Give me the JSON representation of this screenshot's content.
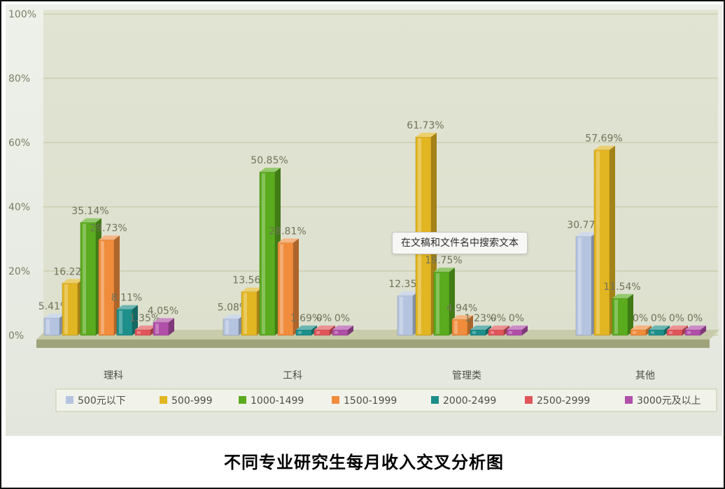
{
  "caption": "不同专业研究生每月收入交叉分析图",
  "tooltip": "在文稿和文件名中搜索文本",
  "chart_data": {
    "type": "bar",
    "title": "",
    "xlabel": "",
    "ylabel": "",
    "ylim": [
      0,
      100
    ],
    "yticks": [
      "0%",
      "20%",
      "40%",
      "60%",
      "80%",
      "100%"
    ],
    "categories": [
      "理科",
      "工科",
      "管理类",
      "其他"
    ],
    "legend_position": "bottom",
    "grid": true,
    "series": [
      {
        "name": "500元以下",
        "color": "#b4c4e0",
        "values": [
          5.41,
          5.08,
          12.35,
          30.77
        ],
        "labels": [
          "5.41%",
          "5.08%",
          "12.35%",
          "30.77%"
        ]
      },
      {
        "name": "500-999",
        "color": "#e2b522",
        "values": [
          16.22,
          13.56,
          61.73,
          57.69
        ],
        "labels": [
          "16.22%",
          "13.56%",
          "61.73%",
          "57.69%"
        ]
      },
      {
        "name": "1000-1499",
        "color": "#5aab1e",
        "values": [
          35.14,
          50.85,
          19.75,
          11.54
        ],
        "labels": [
          "35.14%",
          "50.85%",
          "19.75%",
          "11.54%"
        ]
      },
      {
        "name": "1500-1999",
        "color": "#f08c3c",
        "values": [
          29.73,
          28.81,
          4.94,
          0
        ],
        "labels": [
          "29.73%",
          "28.81%",
          "4.94%",
          "0%"
        ]
      },
      {
        "name": "2000-2499",
        "color": "#1d8f8a",
        "values": [
          8.11,
          1.69,
          1.23,
          0
        ],
        "labels": [
          "8.11%",
          "1.69%",
          "1.23%",
          "0%"
        ]
      },
      {
        "name": "2500-2999",
        "color": "#e0555a",
        "values": [
          1.35,
          0,
          0,
          0
        ],
        "labels": [
          "1.35%",
          "0%",
          "0%",
          "0%"
        ]
      },
      {
        "name": "3000元及以上",
        "color": "#b04ea8",
        "values": [
          4.05,
          0,
          0,
          0
        ],
        "labels": [
          "4.05%",
          "0%",
          "0%",
          "0%"
        ]
      }
    ]
  }
}
